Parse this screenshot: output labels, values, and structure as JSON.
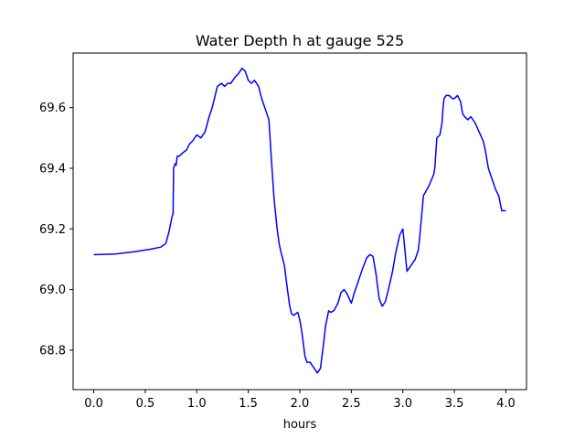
{
  "chart_data": {
    "type": "line",
    "title": "Water Depth h at gauge 525",
    "xlabel": "hours",
    "ylabel": "",
    "xlim": [
      -0.2,
      4.2
    ],
    "ylim": [
      68.67,
      69.78
    ],
    "xticks": [
      0.0,
      0.5,
      1.0,
      1.5,
      2.0,
      2.5,
      3.0,
      3.5,
      4.0
    ],
    "xtick_labels": [
      "0.0",
      "0.5",
      "1.0",
      "1.5",
      "2.0",
      "2.5",
      "3.0",
      "3.5",
      "4.0"
    ],
    "yticks": [
      68.8,
      69.0,
      69.2,
      69.4,
      69.6
    ],
    "ytick_labels": [
      "68.8",
      "69.0",
      "69.2",
      "69.4",
      "69.6"
    ],
    "grid": false,
    "legend": "none",
    "series": [
      {
        "color": "#0000ff",
        "x": [
          0.0,
          0.2,
          0.4,
          0.55,
          0.65,
          0.7,
          0.73,
          0.76,
          0.77,
          0.775,
          0.79,
          0.8,
          0.81,
          0.83,
          0.86,
          0.9,
          0.93,
          0.96,
          1.0,
          1.04,
          1.08,
          1.12,
          1.15,
          1.2,
          1.24,
          1.27,
          1.3,
          1.33,
          1.37,
          1.4,
          1.44,
          1.47,
          1.5,
          1.53,
          1.56,
          1.6,
          1.63,
          1.66,
          1.7,
          1.73,
          1.75,
          1.78,
          1.8,
          1.82,
          1.85,
          1.88,
          1.9,
          1.92,
          1.94,
          1.96,
          1.98,
          2.0,
          2.02,
          2.05,
          2.07,
          2.1,
          2.13,
          2.17,
          2.2,
          2.23,
          2.25,
          2.28,
          2.3,
          2.33,
          2.37,
          2.4,
          2.43,
          2.46,
          2.5,
          2.53,
          2.56,
          2.58,
          2.61,
          2.65,
          2.68,
          2.71,
          2.74,
          2.77,
          2.8,
          2.83,
          2.86,
          2.9,
          2.93,
          2.97,
          3.0,
          3.04,
          3.08,
          3.12,
          3.15,
          3.16,
          3.2,
          3.25,
          3.3,
          3.31,
          3.33,
          3.36,
          3.38,
          3.39,
          3.4,
          3.42,
          3.45,
          3.48,
          3.5,
          3.53,
          3.56,
          3.58,
          3.6,
          3.63,
          3.66,
          3.7,
          3.74,
          3.78,
          3.8,
          3.83,
          3.87,
          3.9,
          3.93,
          3.96,
          4.0
        ],
        "y": [
          69.115,
          69.117,
          69.125,
          69.133,
          69.14,
          69.152,
          69.19,
          69.24,
          69.25,
          69.4,
          69.415,
          69.41,
          69.44,
          69.44,
          69.45,
          69.46,
          69.48,
          69.49,
          69.51,
          69.5,
          69.52,
          69.57,
          69.6,
          69.67,
          69.68,
          69.67,
          69.68,
          69.68,
          69.7,
          69.71,
          69.73,
          69.72,
          69.69,
          69.68,
          69.69,
          69.67,
          69.63,
          69.6,
          69.56,
          69.4,
          69.3,
          69.2,
          69.15,
          69.12,
          69.08,
          69.0,
          68.95,
          68.92,
          68.915,
          68.92,
          68.925,
          68.9,
          68.86,
          68.78,
          68.76,
          68.76,
          68.745,
          68.725,
          68.74,
          68.82,
          68.88,
          68.93,
          68.925,
          68.93,
          68.955,
          68.99,
          69.0,
          68.985,
          68.955,
          68.99,
          69.02,
          69.04,
          69.07,
          69.105,
          69.115,
          69.11,
          69.05,
          68.97,
          68.945,
          68.96,
          69.0,
          69.06,
          69.12,
          69.18,
          69.2,
          69.06,
          69.08,
          69.1,
          69.13,
          69.16,
          69.31,
          69.34,
          69.38,
          69.4,
          69.5,
          69.51,
          69.55,
          69.6,
          69.63,
          69.64,
          69.64,
          69.63,
          69.63,
          69.64,
          69.62,
          69.58,
          69.57,
          69.56,
          69.57,
          69.55,
          69.52,
          69.49,
          69.46,
          69.4,
          69.36,
          69.33,
          69.31,
          69.26,
          69.26
        ]
      }
    ]
  }
}
